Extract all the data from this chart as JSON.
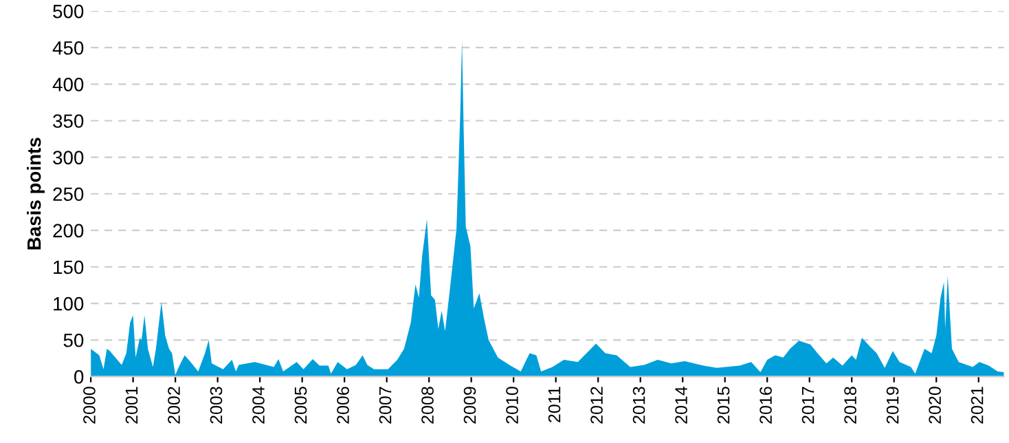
{
  "chart_data": {
    "type": "area",
    "ylabel": "Basis points",
    "x": [
      2000.0,
      2000.2,
      2000.3,
      2000.38,
      2000.45,
      2000.73,
      2000.84,
      2000.93,
      2001.0,
      2001.06,
      2001.16,
      2001.2,
      2001.27,
      2001.35,
      2001.47,
      2001.54,
      2001.67,
      2001.76,
      2001.85,
      2001.92,
      2002.0,
      2002.08,
      2002.22,
      2002.36,
      2002.54,
      2002.7,
      2002.79,
      2002.86,
      2003.13,
      2003.34,
      2003.43,
      2003.5,
      2003.88,
      2004.33,
      2004.44,
      2004.55,
      2004.87,
      2005.03,
      2005.25,
      2005.41,
      2005.62,
      2005.68,
      2005.84,
      2006.06,
      2006.27,
      2006.43,
      2006.54,
      2006.7,
      2007.03,
      2007.25,
      2007.41,
      2007.57,
      2007.68,
      2007.76,
      2007.84,
      2007.95,
      2008.05,
      2008.14,
      2008.22,
      2008.3,
      2008.38,
      2008.49,
      2008.65,
      2008.74,
      2008.78,
      2008.82,
      2008.87,
      2008.98,
      2009.06,
      2009.19,
      2009.3,
      2009.41,
      2009.63,
      2009.9,
      2010.17,
      2010.38,
      2010.54,
      2010.65,
      2010.92,
      2011.19,
      2011.52,
      2011.95,
      2012.17,
      2012.44,
      2012.76,
      2013.09,
      2013.41,
      2013.73,
      2014.05,
      2014.49,
      2014.81,
      2015.35,
      2015.62,
      2015.84,
      2016.0,
      2016.19,
      2016.38,
      2016.54,
      2016.75,
      2017.02,
      2017.19,
      2017.4,
      2017.56,
      2017.78,
      2018.0,
      2018.1,
      2018.24,
      2018.43,
      2018.59,
      2018.78,
      2018.97,
      2019.13,
      2019.4,
      2019.5,
      2019.72,
      2019.89,
      2020.0,
      2020.1,
      2020.18,
      2020.21,
      2020.27,
      2020.37,
      2020.53,
      2020.86,
      2021.02,
      2021.24,
      2021.45,
      2021.6
    ],
    "series": [
      {
        "color": "#009fda",
        "values": [
          38,
          29,
          10,
          38,
          35,
          16,
          32,
          74,
          84,
          26,
          53,
          50,
          84,
          38,
          13,
          38,
          102,
          56,
          38,
          32,
          2,
          13,
          29,
          20,
          7,
          32,
          50,
          18,
          10,
          23,
          7,
          16,
          20,
          13,
          24,
          7,
          20,
          10,
          24,
          15,
          15,
          4,
          20,
          10,
          16,
          29,
          16,
          10,
          10,
          23,
          38,
          74,
          126,
          108,
          166,
          215,
          111,
          105,
          65,
          90,
          62,
          117,
          202,
          361,
          460,
          337,
          205,
          178,
          93,
          114,
          80,
          50,
          26,
          16,
          7,
          32,
          29,
          7,
          13,
          23,
          20,
          45,
          32,
          29,
          13,
          16,
          23,
          18,
          21,
          15,
          12,
          15,
          20,
          6,
          23,
          29,
          26,
          38,
          49,
          44,
          32,
          18,
          26,
          15,
          29,
          23,
          53,
          41,
          32,
          12,
          35,
          20,
          13,
          4,
          38,
          32,
          56,
          108,
          129,
          65,
          138,
          38,
          20,
          13,
          20,
          15,
          7,
          6
        ]
      }
    ],
    "xlim": [
      2000,
      2021.6
    ],
    "xticks": [
      2000,
      2001,
      2002,
      2003,
      2004,
      2005,
      2006,
      2007,
      2008,
      2009,
      2010,
      2011,
      2012,
      2013,
      2014,
      2015,
      2016,
      2017,
      2018,
      2019,
      2020,
      2021
    ],
    "ylim": [
      0,
      500
    ],
    "yticks": [
      0,
      50,
      100,
      150,
      200,
      250,
      300,
      350,
      400,
      450,
      500
    ],
    "grid": "y"
  }
}
